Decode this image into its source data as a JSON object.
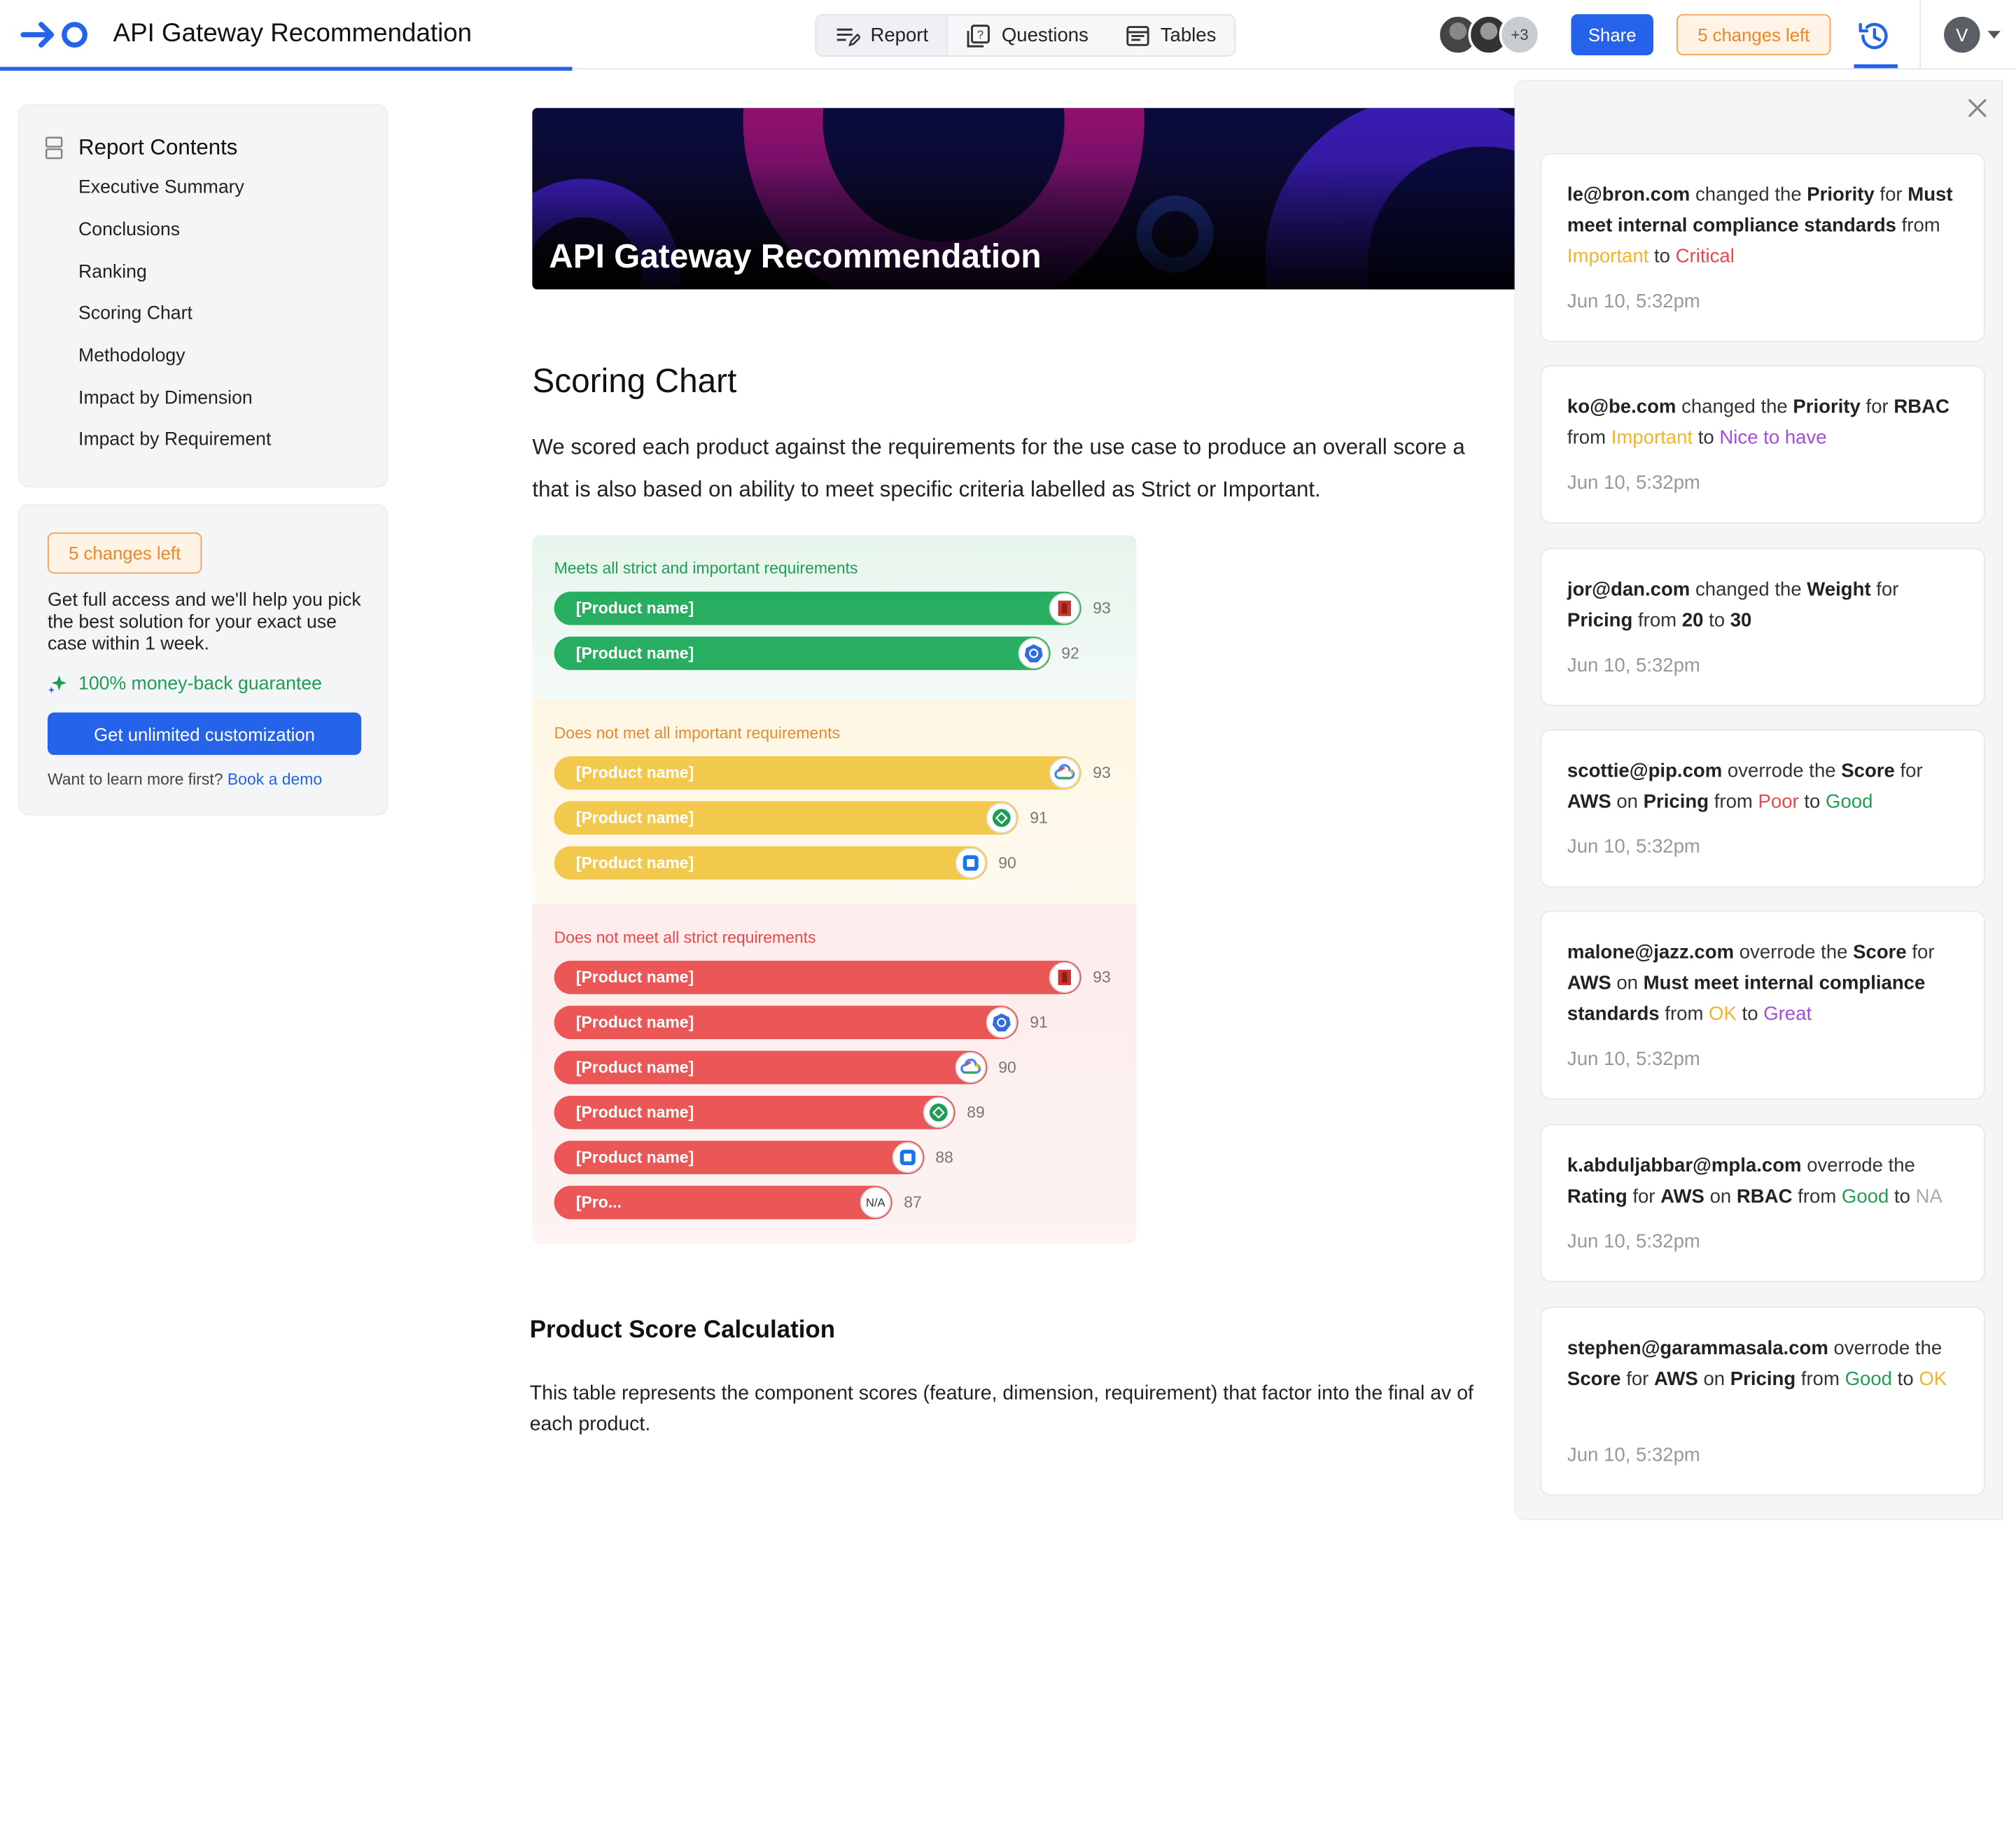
{
  "app": {
    "title": "API Gateway Recommendation",
    "tabs": [
      {
        "label": "Report"
      },
      {
        "label": "Questions"
      },
      {
        "label": "Tables"
      }
    ],
    "avatars_more": "+3",
    "share_label": "Share",
    "changes_left": "5 changes left",
    "user_initial": "V"
  },
  "sidebar": {
    "title": "Report Contents",
    "items": [
      "Executive Summary",
      "Conclusions",
      "Ranking",
      "Scoring Chart",
      "Methodology",
      "Impact by Dimension",
      "Impact by Requirement"
    ]
  },
  "promo": {
    "badge": "5 changes left",
    "text": "Get full access and we'll help you pick the best solution for your exact use case within 1 week.",
    "guarantee": "100% money-back guarantee",
    "cta": "Get unlimited customization",
    "learn_prefix": "Want to learn more first?",
    "learn_link": "Book a demo"
  },
  "main": {
    "hero_title": "API Gateway Recommendation",
    "section_title": "Scoring Chart",
    "section_text_1": "We scored each product against the requirements for the use case to produce an overall score a",
    "section_text_2": "that is also based on ability to meet specific criteria labelled as Strict or Important.",
    "calc_title": "Product Score Calculation",
    "calc_text": "This table represents the component scores (feature, dimension, requirement) that factor into the final av of each product."
  },
  "chart_data": {
    "type": "bar",
    "orientation": "horizontal",
    "groups": [
      {
        "label": "Meets all strict and important requirements",
        "color": "#27ae60",
        "bars": [
          {
            "name": "[Product name]",
            "value": 93,
            "icon": "aws-icon"
          },
          {
            "name": "[Product name]",
            "value": 92,
            "icon": "kubernetes-icon"
          }
        ]
      },
      {
        "label": "Does not met all important requirements",
        "color": "#f2c94c",
        "bars": [
          {
            "name": "[Product name]",
            "value": 93,
            "icon": "google-cloud-icon"
          },
          {
            "name": "[Product name]",
            "value": 91,
            "icon": "nginx-icon"
          },
          {
            "name": "[Product name]",
            "value": 90,
            "icon": "azure-icon"
          }
        ]
      },
      {
        "label": "Does not meet all strict requirements",
        "color": "#eb5757",
        "bars": [
          {
            "name": "[Product name]",
            "value": 93,
            "icon": "aws-icon"
          },
          {
            "name": "[Product name]",
            "value": 91,
            "icon": "kubernetes-icon"
          },
          {
            "name": "[Product name]",
            "value": 90,
            "icon": "google-cloud-icon"
          },
          {
            "name": "[Product name]",
            "value": 89,
            "icon": "nginx-icon"
          },
          {
            "name": "[Product name]",
            "value": 88,
            "icon": "azure-icon"
          },
          {
            "name": "[Pro...",
            "value": 87,
            "icon": "na-icon",
            "icon_text": "N/A"
          }
        ]
      }
    ]
  },
  "history": [
    {
      "time": "Jun 10, 5:32pm"
    },
    {
      "time": "Jun 10, 5:32pm"
    },
    {
      "time": "Jun 10, 5:32pm"
    },
    {
      "time": "Jun 10, 5:32pm"
    },
    {
      "time": "Jun 10, 5:32pm"
    },
    {
      "time": "Jun 10, 5:32pm"
    },
    {
      "time": "Jun 10, 5:32pm"
    }
  ],
  "history_text": {
    "c1": {
      "user": "le@bron.com",
      "a": "changed the",
      "field": "Priority",
      "b": "for",
      "target": "Must meet internal compliance standards",
      "from": "from",
      "old": "Important",
      "to": "to",
      "new": "Critical"
    },
    "c2": {
      "user": "ko@be.com",
      "a": "changed the",
      "field": "Priority",
      "b": "for",
      "target": "RBAC",
      "from": "from",
      "old": "Important",
      "to": "to",
      "new": "Nice to have"
    },
    "c3": {
      "user": "jor@dan.com",
      "a": "changed the",
      "field": "Weight",
      "b": "for",
      "target": "Pricing",
      "from": "from",
      "old": "20",
      "to": "to",
      "new": "30"
    },
    "c4": {
      "user": "scottie@pip.com",
      "a": "overrode the",
      "field": "Score",
      "b": "for",
      "target": "AWS",
      "on": "on",
      "target2": "Pricing",
      "from": "from",
      "old": "Poor",
      "to": "to",
      "new": "Good"
    },
    "c5": {
      "user": "malone@jazz.com",
      "a": "overrode the",
      "field": "Score",
      "b": "for",
      "target": "AWS",
      "on": "on",
      "target2": "Must meet internal compliance standards",
      "from": "from",
      "old": "OK",
      "to": "to",
      "new": "Great"
    },
    "c6": {
      "user": "k.abduljabbar@mpla.com",
      "a": "overrode the",
      "field": "Rating",
      "b": "for",
      "target": "AWS",
      "on": "on",
      "target2": "RBAC",
      "from": "from",
      "old": "Good",
      "to": "to",
      "new": "NA"
    },
    "c7": {
      "user": "stephen@garammasala.com",
      "a": "overrode the",
      "field": "Score",
      "b": "for",
      "target": "AWS",
      "on": "on",
      "target2": "Pricing",
      "from": "from",
      "old": "Good",
      "to": "to",
      "new": "OK"
    }
  }
}
